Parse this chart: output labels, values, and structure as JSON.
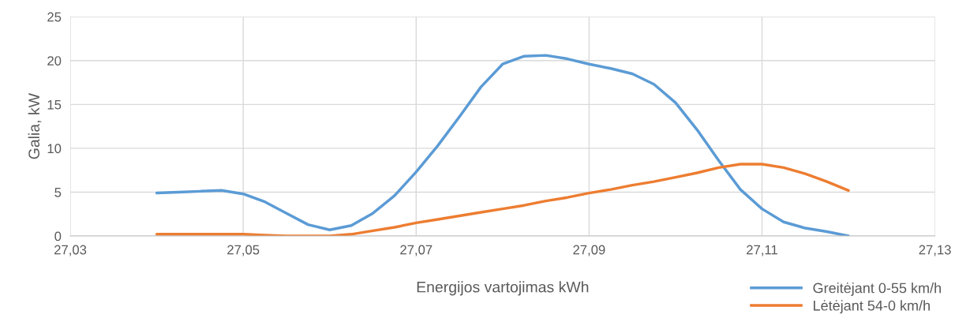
{
  "chart_data": {
    "type": "line",
    "xlabel": "Energijos vartojimas kWh",
    "ylabel": "Galia, kW",
    "x": [
      27.04,
      27.0425,
      27.045,
      27.0475,
      27.05,
      27.0525,
      27.055,
      27.0575,
      27.06,
      27.0625,
      27.065,
      27.0675,
      27.07,
      27.0725,
      27.075,
      27.0775,
      27.08,
      27.0825,
      27.085,
      27.0875,
      27.09,
      27.0925,
      27.095,
      27.0975,
      27.1,
      27.1025,
      27.105,
      27.1075,
      27.11,
      27.1125,
      27.115,
      27.1175,
      27.12
    ],
    "series": [
      {
        "name": "Greitėjant 0-55 km/h",
        "color": "#5b9bd5",
        "values": [
          4.9,
          5.0,
          5.1,
          5.2,
          4.8,
          3.9,
          2.6,
          1.3,
          0.7,
          1.2,
          2.6,
          4.6,
          7.3,
          10.3,
          13.6,
          17.0,
          19.6,
          20.5,
          20.6,
          20.2,
          19.6,
          19.1,
          18.5,
          17.3,
          15.2,
          12.1,
          8.6,
          5.3,
          3.1,
          1.6,
          0.9,
          0.5,
          0
        ]
      },
      {
        "name": "Lėtėjant 54-0 km/h",
        "color": "#ed7d31",
        "values": [
          0.2,
          0.2,
          0.2,
          0.2,
          0.2,
          0.1,
          0,
          0,
          0,
          0.2,
          0.6,
          1.0,
          1.5,
          1.9,
          2.3,
          2.7,
          3.1,
          3.5,
          4.0,
          4.4,
          4.9,
          5.3,
          5.8,
          6.2,
          6.7,
          7.2,
          7.8,
          8.2,
          8.2,
          7.8,
          7.1,
          6.2,
          5.2
        ]
      }
    ],
    "xlim": [
      27.03,
      27.13
    ],
    "xticks": [
      {
        "value": 27.03,
        "label": "27,03"
      },
      {
        "value": 27.05,
        "label": "27,05"
      },
      {
        "value": 27.07,
        "label": "27,07"
      },
      {
        "value": 27.09,
        "label": "27,09"
      },
      {
        "value": 27.11,
        "label": "27,11"
      },
      {
        "value": 27.13,
        "label": "27,13"
      }
    ],
    "ylim": [
      0,
      25
    ],
    "yticks": [
      0,
      5,
      10,
      15,
      20,
      25
    ],
    "grid": true,
    "legend": "bottom right",
    "marker": "none",
    "line_style": "solid"
  }
}
